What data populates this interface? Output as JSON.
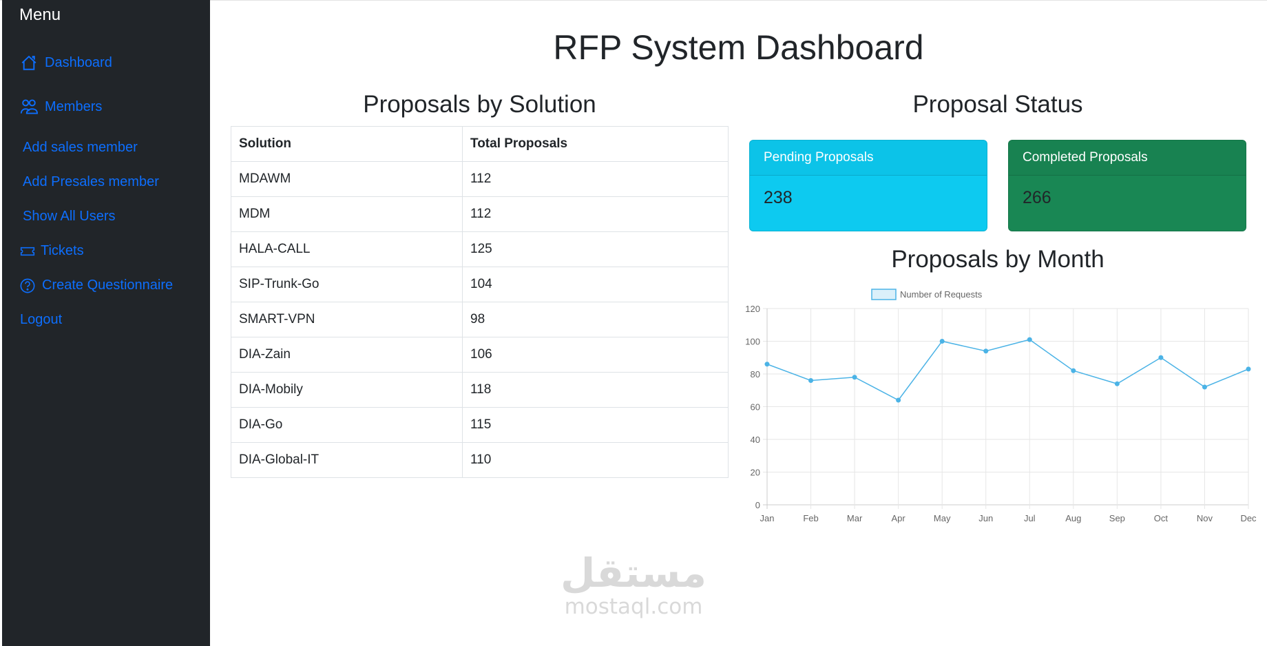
{
  "sidebar": {
    "title": "Menu",
    "items": [
      {
        "label": "Dashboard",
        "icon": "house-icon"
      },
      {
        "label": "Members",
        "icon": "people-icon"
      },
      {
        "label": "Add sales member",
        "icon": ""
      },
      {
        "label": "Add Presales member",
        "icon": ""
      },
      {
        "label": "Show All Users",
        "icon": ""
      },
      {
        "label": "Tickets",
        "icon": "ticket-icon"
      },
      {
        "label": "Create Questionnaire",
        "icon": "question-circle-icon"
      },
      {
        "label": "Logout",
        "icon": ""
      }
    ],
    "link_color": "#0d6efd",
    "background": "#212529"
  },
  "header": {
    "title": "RFP System Dashboard"
  },
  "solutions": {
    "title": "Proposals by Solution",
    "columns": [
      "Solution",
      "Total Proposals"
    ],
    "rows": [
      [
        "MDAWM",
        "112"
      ],
      [
        "MDM",
        "112"
      ],
      [
        "HALA-CALL",
        "125"
      ],
      [
        "SIP-Trunk-Go",
        "104"
      ],
      [
        "SMART-VPN",
        "98"
      ],
      [
        "DIA-Zain",
        "106"
      ],
      [
        "DIA-Mobily",
        "118"
      ],
      [
        "DIA-Go",
        "115"
      ],
      [
        "DIA-Global-IT",
        "110"
      ]
    ]
  },
  "status": {
    "title": "Proposal Status",
    "pending": {
      "label": "Pending Proposals",
      "value": "238",
      "color": "#0dcaf0"
    },
    "completed": {
      "label": "Completed Proposals",
      "value": "266",
      "color": "#198754"
    }
  },
  "monthly": {
    "title": "Proposals by Month"
  },
  "chart_data": {
    "type": "line",
    "title": "Proposals by Month",
    "categories": [
      "Jan",
      "Feb",
      "Mar",
      "Apr",
      "May",
      "Jun",
      "Jul",
      "Aug",
      "Sep",
      "Oct",
      "Nov",
      "Dec"
    ],
    "series": [
      {
        "name": "Number of Requests",
        "values": [
          86,
          76,
          78,
          64,
          100,
          94,
          101,
          82,
          74,
          90,
          72,
          83
        ],
        "color": "#4bb3e6"
      }
    ],
    "xlabel": "",
    "ylabel": "",
    "ylim": [
      0,
      120
    ],
    "yticks": [
      0,
      20,
      40,
      60,
      80,
      100,
      120
    ],
    "grid": true,
    "legend_position": "top"
  },
  "watermark": {
    "arabic": "مستقل",
    "latin": "mostaql.com"
  }
}
